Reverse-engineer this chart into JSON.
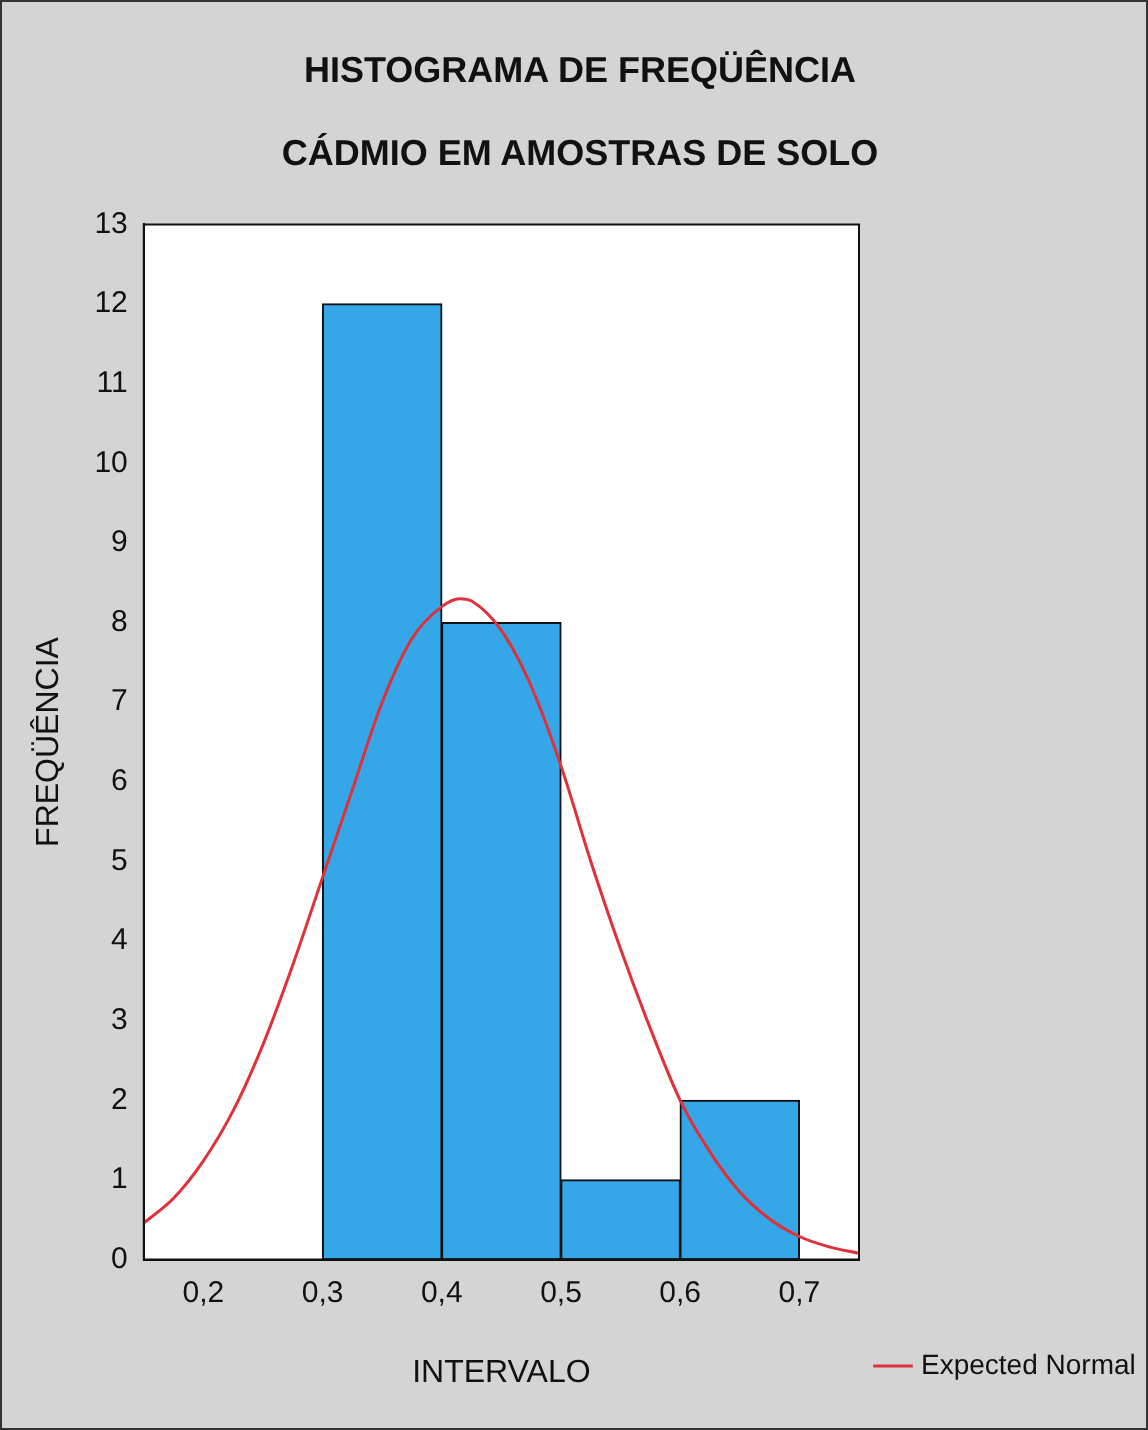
{
  "chart_data": {
    "type": "histogram",
    "title": "HISTOGRAMA DE FREQÜÊNCIA",
    "subtitle": "CÁDMIO EM AMOSTRAS DE SOLO",
    "xlabel": "INTERVALO",
    "ylabel": "FREQÜÊNCIA",
    "bins": [
      0.2,
      0.3,
      0.4,
      0.5,
      0.6,
      0.7
    ],
    "values": [
      0,
      12,
      8,
      1,
      2
    ],
    "color": "#35a7e8",
    "series": [
      {
        "type": "line",
        "name": "Expected Normal",
        "color": "#e0303a",
        "x": [
          0.15,
          0.175,
          0.2,
          0.225,
          0.25,
          0.275,
          0.3,
          0.325,
          0.35,
          0.375,
          0.4,
          0.415,
          0.425,
          0.45,
          0.475,
          0.5,
          0.525,
          0.55,
          0.575,
          0.6,
          0.625,
          0.65,
          0.675,
          0.7,
          0.725,
          0.75
        ],
        "values": [
          0.46,
          0.77,
          1.24,
          1.87,
          2.7,
          3.7,
          4.8,
          5.9,
          7.0,
          7.8,
          8.2,
          8.3,
          8.27,
          7.9,
          7.2,
          6.2,
          5.0,
          3.9,
          2.9,
          2.0,
          1.35,
          0.85,
          0.51,
          0.29,
          0.16,
          0.08
        ]
      }
    ],
    "xlim": [
      0.15,
      0.75
    ],
    "xticks": [
      {
        "value": 0.2,
        "label": "0,2"
      },
      {
        "value": 0.3,
        "label": "0,3"
      },
      {
        "value": 0.4,
        "label": "0,4"
      },
      {
        "value": 0.5,
        "label": "0,5"
      },
      {
        "value": 0.6,
        "label": "0,6"
      },
      {
        "value": 0.7,
        "label": "0,7"
      }
    ],
    "ylim": [
      0,
      13
    ],
    "yticks": [
      0,
      1,
      2,
      3,
      4,
      5,
      6,
      7,
      8,
      9,
      10,
      11,
      12,
      13
    ],
    "grid": false,
    "legend": "bottom right",
    "marker": "none",
    "line_style": "solid"
  }
}
